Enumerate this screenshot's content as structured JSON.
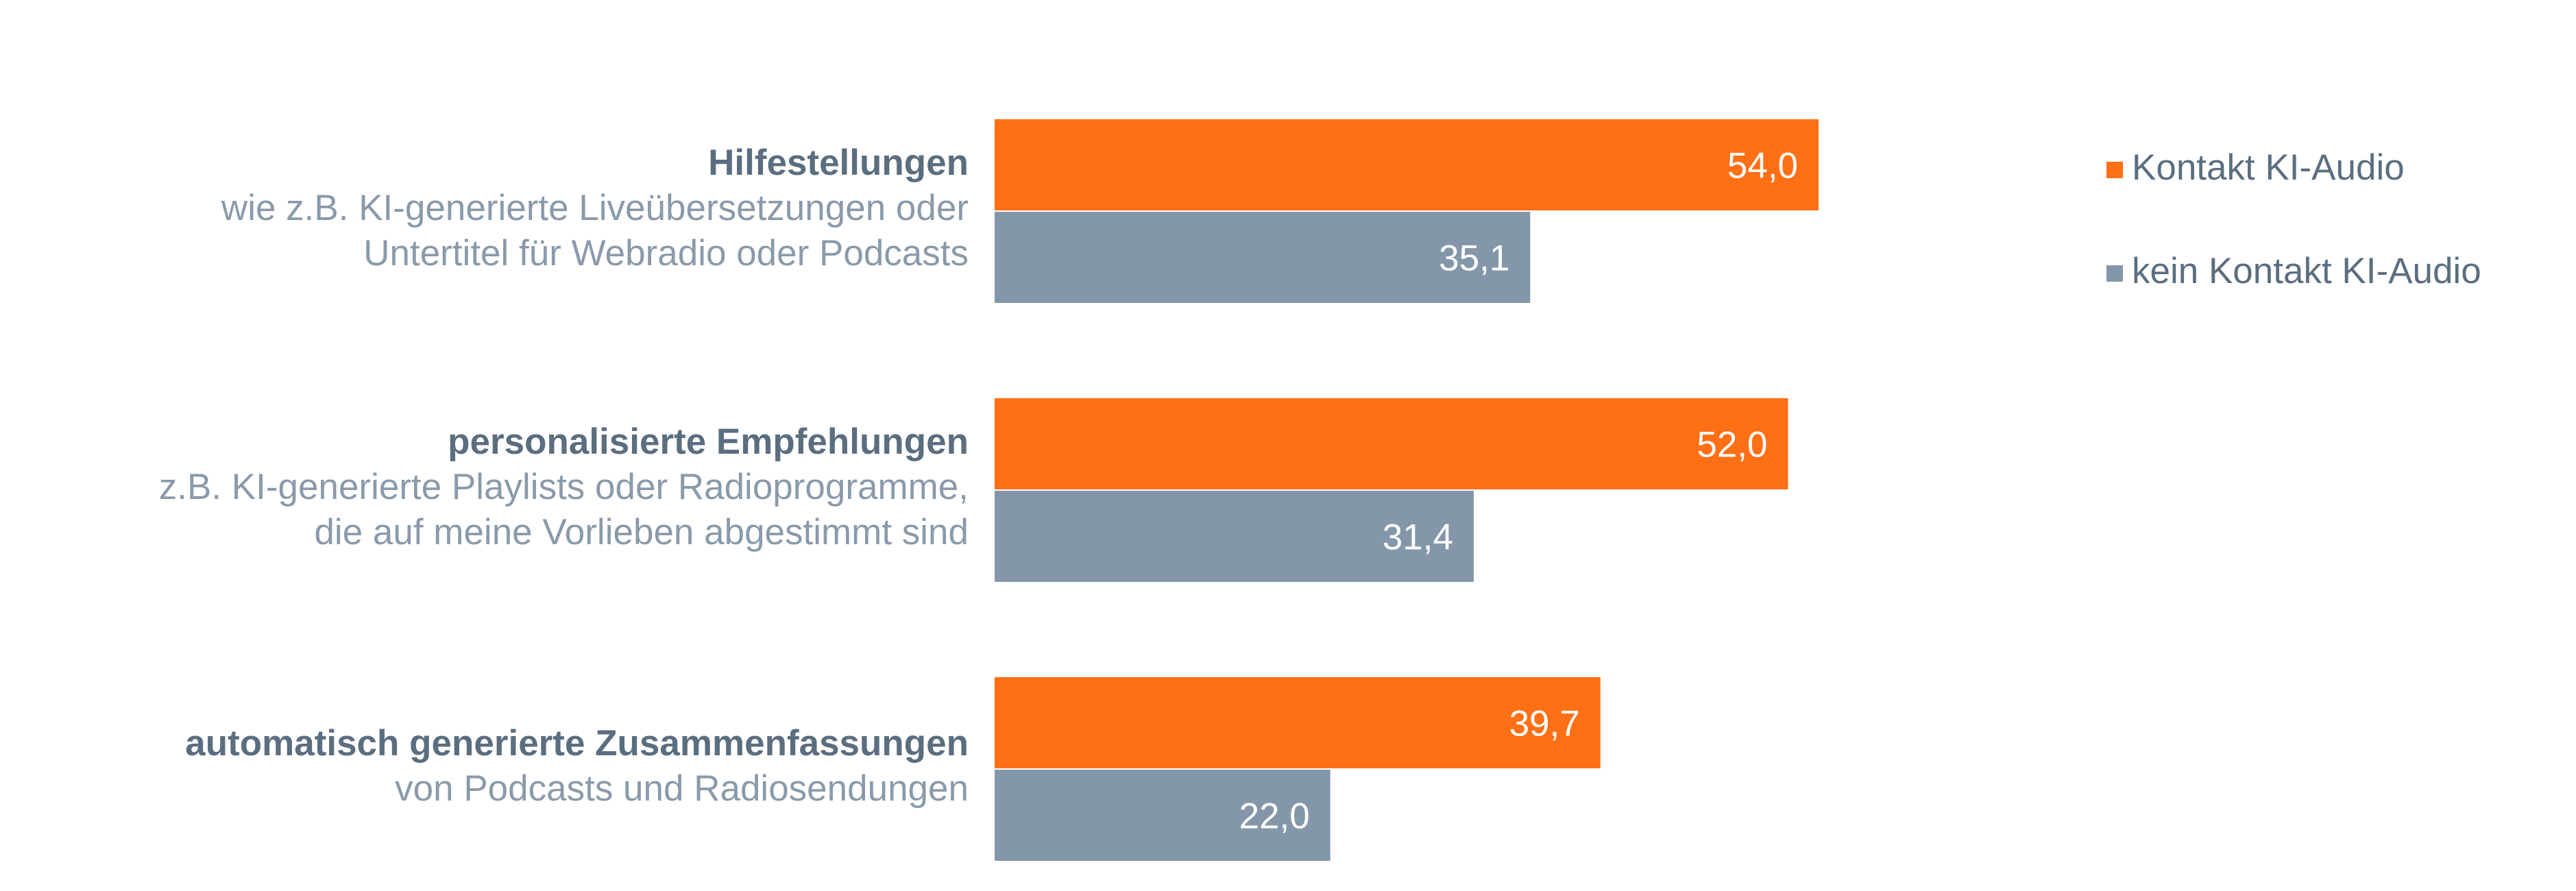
{
  "chart_data": {
    "type": "bar",
    "orientation": "horizontal",
    "title": "",
    "categories": [
      {
        "title": "Hilfestellungen",
        "description": [
          "wie z.B. KI-generierte Liveübersetzungen oder",
          "Untertitel für Webradio oder Podcasts"
        ]
      },
      {
        "title": "personalisierte Empfehlungen",
        "description": [
          "z.B. KI-generierte Playlists oder Radioprogramme,",
          "die auf meine Vorlieben abgestimmt sind"
        ]
      },
      {
        "title": "automatisch generierte Zusammenfassungen",
        "description": [
          "von Podcasts und Radiosendungen"
        ]
      }
    ],
    "series": [
      {
        "name": "Kontakt KI-Audio",
        "color": "#ff6f15",
        "values": [
          54.0,
          52.0,
          39.7
        ],
        "labels": [
          "54,0",
          "52,0",
          "39,7"
        ]
      },
      {
        "name": "kein Kontakt KI-Audio",
        "color": "#8497aa",
        "values": [
          35.1,
          31.4,
          22.0
        ],
        "labels": [
          "35,1",
          "31,4",
          "22,0"
        ]
      }
    ],
    "xlim": [
      0,
      100
    ],
    "grid": false,
    "legend": "top-right"
  }
}
